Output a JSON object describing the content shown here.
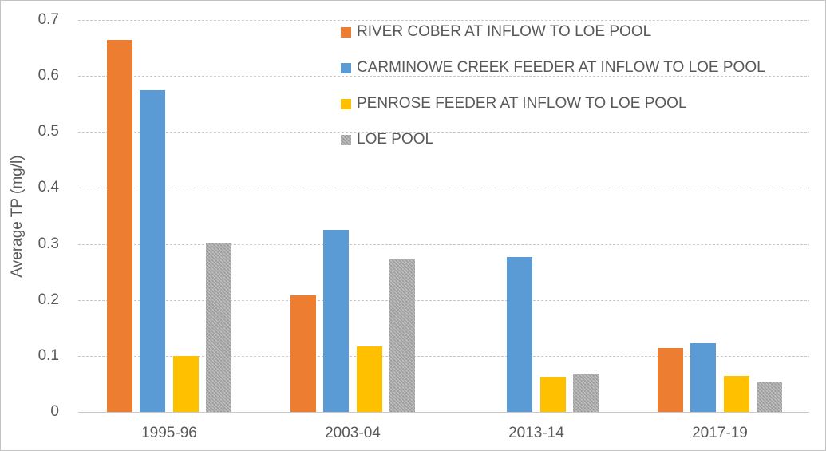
{
  "chart_data": {
    "type": "bar",
    "title": "",
    "xlabel": "",
    "ylabel": "Average TP (mg/l)",
    "ylim": [
      0,
      0.7
    ],
    "y_ticks": [
      "0",
      "0.1",
      "0.2",
      "0.3",
      "0.4",
      "0.5",
      "0.6",
      "0.7"
    ],
    "grid": true,
    "legend_position": "top-right",
    "categories": [
      "1995-96",
      "2003-04",
      "2013-14",
      "2017-19"
    ],
    "series": [
      {
        "name": "RIVER COBER AT INFLOW TO LOE POOL",
        "color": "#ED7D31",
        "fill_pattern": "solid",
        "values": [
          0.665,
          0.208,
          null,
          0.114
        ]
      },
      {
        "name": "CARMINOWE CREEK FEEDER AT INFLOW TO LOE POOL",
        "color": "#5B9BD5",
        "fill_pattern": "solid",
        "values": [
          0.575,
          0.325,
          0.277,
          0.123
        ]
      },
      {
        "name": "PENROSE FEEDER AT INFLOW TO LOE POOL",
        "color": "#FFC000",
        "fill_pattern": "solid",
        "values": [
          0.1,
          0.117,
          0.063,
          0.064
        ]
      },
      {
        "name": "LOE POOL",
        "color": "#A8A8A8",
        "fill_pattern": "stipple",
        "values": [
          0.302,
          0.274,
          0.068,
          0.054
        ]
      }
    ],
    "colors": {
      "axis_text": "#595959",
      "gridline": "#C9C9C9",
      "background": "#FFFFFF"
    }
  }
}
